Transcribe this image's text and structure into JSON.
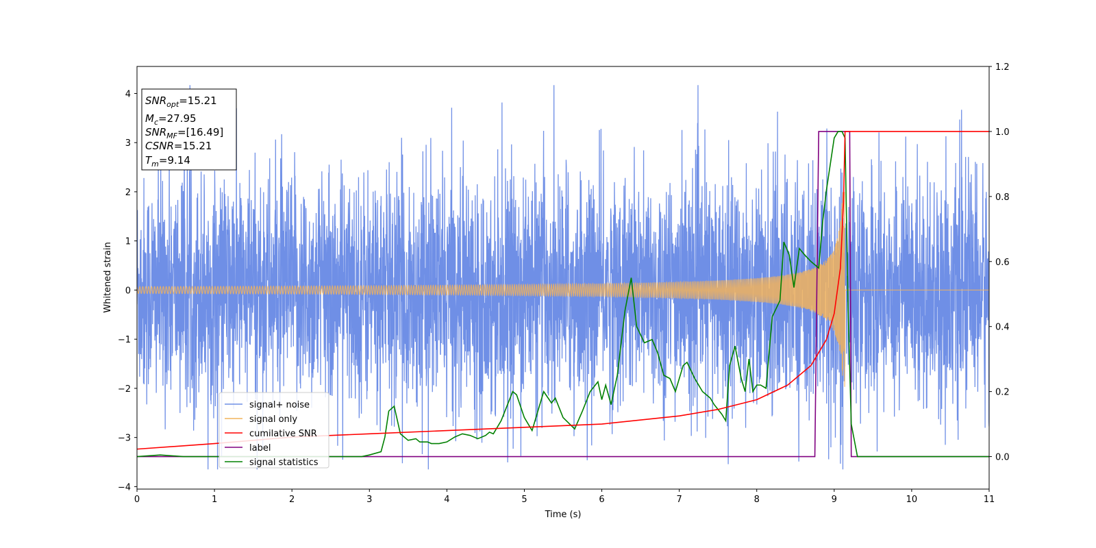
{
  "chart_data": {
    "type": "line",
    "xlabel": "Time (s)",
    "ylabel": "Whitened strain",
    "xlim": [
      0,
      11
    ],
    "ylim_left": [
      -4.05,
      4.55
    ],
    "ylim_right": [
      -0.1,
      1.2
    ],
    "x_ticks": [
      "0",
      "1",
      "2",
      "3",
      "4",
      "5",
      "6",
      "7",
      "8",
      "9",
      "10",
      "11"
    ],
    "y_ticks_left": [
      "−4",
      "−3",
      "−2",
      "−1",
      "0",
      "1",
      "2",
      "3",
      "4"
    ],
    "y_ticks_right": [
      "0.0",
      "0.2",
      "0.4",
      "0.6",
      "0.8",
      "1.0",
      "1.2"
    ],
    "grid": false,
    "legend_position": "lower-left",
    "annotation": {
      "snr_opt": {
        "sym": "SNR",
        "sub": "opt",
        "value": "=15.21"
      },
      "mc": {
        "sym": "M",
        "sub": "c",
        "value": "=27.95"
      },
      "snr_mf": {
        "sym": "SNR",
        "sub": "MF",
        "value": "=[16.49]"
      },
      "csnr": {
        "sym": "CSNR",
        "value": "=15.21"
      },
      "tm": {
        "sym": "T",
        "sub": "m",
        "value": "=9.14"
      }
    },
    "series": [
      {
        "name": "signal+ noise",
        "axis": "left",
        "color": "#6f8fe6",
        "kind": "noise",
        "description_values": {
          "typical_amplitude": 2.2,
          "max": 4.17,
          "min": -3.65
        }
      },
      {
        "name": "signal only",
        "axis": "left",
        "color": "#f2b35c",
        "kind": "chirp",
        "base_amplitude": 0.02,
        "merger_time": 9.14,
        "peak_amplitude": 2.0
      },
      {
        "name": "cumilative SNR",
        "axis": "right",
        "color": "#ff0000",
        "x": [
          0,
          1,
          2,
          3,
          4,
          5,
          6,
          7,
          7.5,
          8,
          8.4,
          8.7,
          8.9,
          9.0,
          9.08,
          9.12,
          9.14,
          11
        ],
        "y": [
          0.023,
          0.04,
          0.06,
          0.07,
          0.08,
          0.09,
          0.1,
          0.125,
          0.145,
          0.175,
          0.22,
          0.28,
          0.36,
          0.44,
          0.58,
          0.78,
          1.0,
          1.0
        ]
      },
      {
        "name": "label",
        "axis": "right",
        "color": "#800080",
        "x": [
          0,
          8.75,
          8.8,
          9.2,
          9.22,
          11
        ],
        "y": [
          0,
          0,
          1.0,
          1.0,
          0,
          0
        ]
      },
      {
        "name": "signal statistics",
        "axis": "right",
        "color": "#008000",
        "x": [
          0,
          0.3,
          0.6,
          1.0,
          1.5,
          2.0,
          2.5,
          2.75,
          2.9,
          3.0,
          3.15,
          3.2,
          3.25,
          3.32,
          3.4,
          3.5,
          3.6,
          3.65,
          3.75,
          3.8,
          3.9,
          4.0,
          4.1,
          4.2,
          4.3,
          4.4,
          4.5,
          4.55,
          4.6,
          4.7,
          4.8,
          4.85,
          4.9,
          5.0,
          5.1,
          5.15,
          5.25,
          5.35,
          5.4,
          5.5,
          5.65,
          5.75,
          5.85,
          5.95,
          6.0,
          6.05,
          6.12,
          6.2,
          6.3,
          6.38,
          6.45,
          6.55,
          6.65,
          6.72,
          6.8,
          6.88,
          6.95,
          7.05,
          7.1,
          7.2,
          7.3,
          7.4,
          7.45,
          7.55,
          7.6,
          7.65,
          7.72,
          7.8,
          7.85,
          7.9,
          7.95,
          8.0,
          8.05,
          8.12,
          8.2,
          8.3,
          8.35,
          8.42,
          8.48,
          8.55,
          8.62,
          8.7,
          8.8,
          8.85,
          8.9,
          8.95,
          9.0,
          9.05,
          9.1,
          9.14,
          9.18,
          9.22,
          9.3,
          10,
          11
        ],
        "y": [
          0.0,
          0.005,
          0.0,
          0.0,
          0.0,
          0.0,
          0.0,
          0.0,
          0.0,
          0.005,
          0.015,
          0.06,
          0.14,
          0.155,
          0.07,
          0.05,
          0.055,
          0.045,
          0.045,
          0.04,
          0.04,
          0.045,
          0.06,
          0.07,
          0.065,
          0.055,
          0.065,
          0.075,
          0.07,
          0.11,
          0.17,
          0.2,
          0.19,
          0.12,
          0.08,
          0.12,
          0.2,
          0.165,
          0.18,
          0.12,
          0.085,
          0.14,
          0.2,
          0.23,
          0.175,
          0.22,
          0.16,
          0.25,
          0.45,
          0.55,
          0.4,
          0.35,
          0.36,
          0.32,
          0.25,
          0.24,
          0.2,
          0.28,
          0.29,
          0.24,
          0.2,
          0.18,
          0.16,
          0.13,
          0.11,
          0.28,
          0.34,
          0.24,
          0.2,
          0.3,
          0.2,
          0.22,
          0.22,
          0.21,
          0.43,
          0.48,
          0.66,
          0.62,
          0.52,
          0.64,
          0.62,
          0.6,
          0.58,
          0.72,
          0.82,
          0.9,
          0.98,
          1.0,
          1.0,
          0.98,
          0.45,
          0.1,
          0.0,
          0.0,
          0.0
        ]
      }
    ]
  },
  "colors": {
    "axis": "#000000",
    "legend_border": "#cccccc",
    "background": "#ffffff"
  }
}
